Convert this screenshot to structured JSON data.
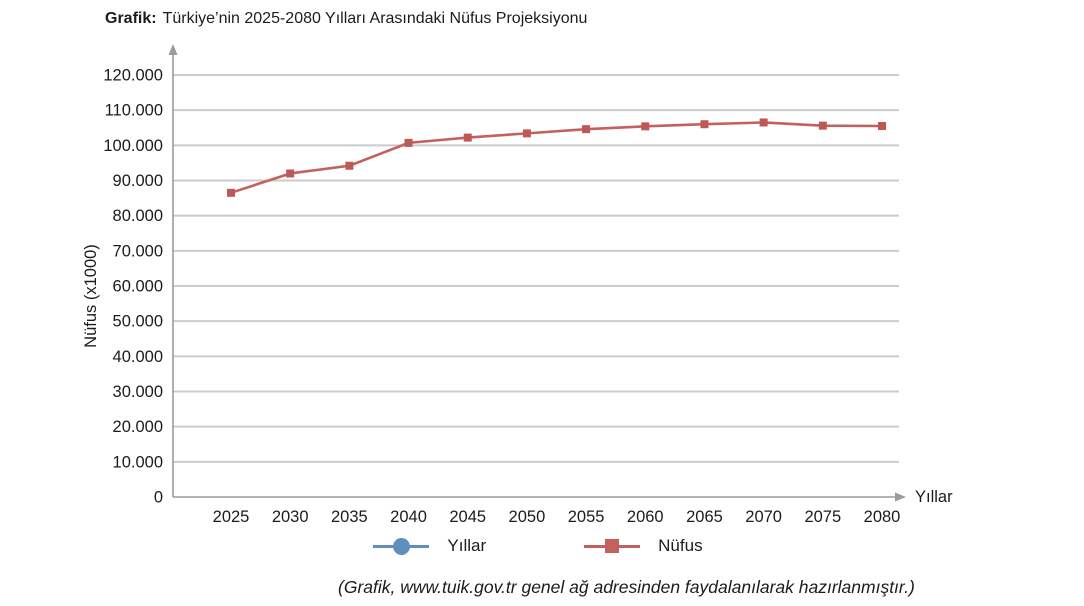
{
  "title": {
    "prefix": "Grafik:",
    "text": "Türkiye’nin 2025-2080 Yılları Arasındaki Nüfus Projeksiyonu"
  },
  "footer": {
    "text": "(Grafik, www.tuik.gov.tr genel ağ adresinden faydalanılarak hazırlanmıştır.)"
  },
  "legend": [
    {
      "name": "Yıllar",
      "marker": "circle",
      "color": "#5f8fbf"
    },
    {
      "name": "Nüfus",
      "marker": "square",
      "color": "#c4615e"
    }
  ],
  "colors": {
    "series_line": "#c4615e",
    "series_marker": "#bd5854",
    "legend_blue": "#5f8fbf",
    "gridline": "#cbcbcb",
    "axis": "#9b9b9b",
    "text": "#1c1c1c"
  },
  "chart_data": {
    "type": "line",
    "title": "Türkiye’nin 2025-2080 Yılları Arasındaki Nüfus Projeksiyonu",
    "xlabel": "Yıllar",
    "ylabel": "Nüfus (x1000)",
    "categories": [
      2025,
      2030,
      2035,
      2040,
      2045,
      2050,
      2055,
      2060,
      2065,
      2070,
      2075,
      2080
    ],
    "series": [
      {
        "name": "Nüfus",
        "marker": "square",
        "color": "#c4615e",
        "values_unit": "thousands",
        "values": [
          86500,
          92000,
          94200,
          100700,
          102200,
          103400,
          104600,
          105400,
          106000,
          106500,
          105600,
          105500
        ]
      }
    ],
    "ylim": [
      0,
      120000
    ],
    "y_tick_step": 10000,
    "y_tick_labels": [
      "0",
      "10.000",
      "20.000",
      "30.000",
      "40.000",
      "50.000",
      "60.000",
      "70.000",
      "80.000",
      "90.000",
      "100.000",
      "110.000",
      "120.000"
    ],
    "grid": true,
    "legend_position": "bottom"
  }
}
